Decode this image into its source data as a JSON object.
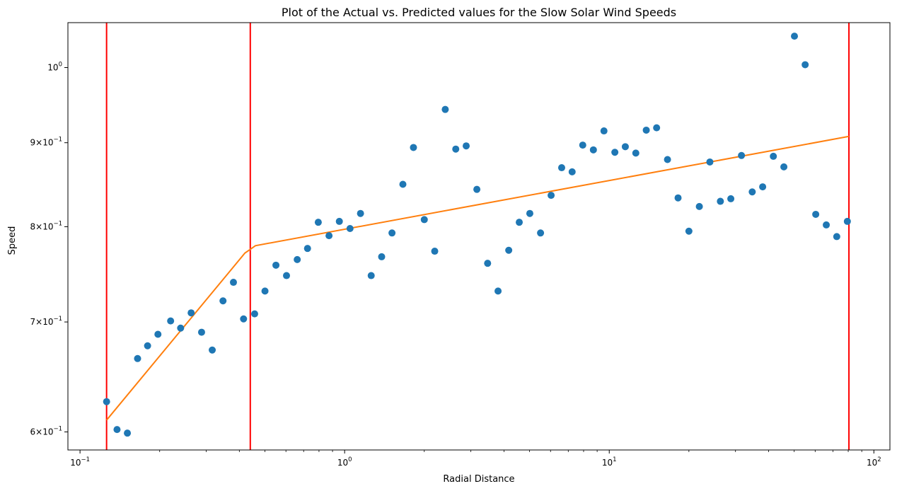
{
  "chart_data": {
    "type": "scatter",
    "title": "Plot of the Actual vs. Predicted values for the Slow Solar Wind Speeds",
    "xlabel": "Radial Distance",
    "ylabel": "Speed",
    "xscale": "log",
    "yscale": "log",
    "xlim": [
      0.09,
      115
    ],
    "ylim": [
      0.585,
      1.065
    ],
    "grid": false,
    "legend": "none",
    "xticks": [
      {
        "value": 0.1,
        "base": "10",
        "exp": "−1"
      },
      {
        "value": 1,
        "base": "10",
        "exp": "0"
      },
      {
        "value": 10,
        "base": "10",
        "exp": "1"
      },
      {
        "value": 100,
        "base": "10",
        "exp": "2"
      }
    ],
    "yticks": [
      {
        "value": 0.6,
        "mant": "6",
        "base": "10",
        "exp": "−1"
      },
      {
        "value": 0.7,
        "mant": "7",
        "base": "10",
        "exp": "−1"
      },
      {
        "value": 0.8,
        "mant": "8",
        "base": "10",
        "exp": "−1"
      },
      {
        "value": 0.9,
        "mant": "9",
        "base": "10",
        "exp": "−1"
      },
      {
        "value": 1.0,
        "mant": "",
        "base": "10",
        "exp": "0"
      }
    ],
    "colors": {
      "actual": "#1f77b4",
      "predicted": "#ff7f0e",
      "vlines": "#ff0000"
    },
    "vlines": [
      0.126,
      0.44,
      80.5
    ],
    "series": [
      {
        "kind": "scatter",
        "points": [
          [
            0.126,
            0.626
          ],
          [
            0.138,
            0.602
          ],
          [
            0.151,
            0.599
          ],
          [
            0.165,
            0.665
          ],
          [
            0.18,
            0.677
          ],
          [
            0.197,
            0.688
          ],
          [
            0.22,
            0.701
          ],
          [
            0.24,
            0.694
          ],
          [
            0.263,
            0.709
          ],
          [
            0.288,
            0.69
          ],
          [
            0.316,
            0.673
          ],
          [
            0.347,
            0.721
          ],
          [
            0.38,
            0.74
          ],
          [
            0.415,
            0.703
          ],
          [
            0.457,
            0.708
          ],
          [
            0.5,
            0.731
          ],
          [
            0.55,
            0.758
          ],
          [
            0.603,
            0.747
          ],
          [
            0.662,
            0.764
          ],
          [
            0.724,
            0.776
          ],
          [
            0.795,
            0.805
          ],
          [
            0.873,
            0.79
          ],
          [
            0.955,
            0.806
          ],
          [
            1.048,
            0.798
          ],
          [
            1.148,
            0.815
          ],
          [
            1.26,
            0.747
          ],
          [
            1.38,
            0.767
          ],
          [
            1.51,
            0.793
          ],
          [
            1.66,
            0.849
          ],
          [
            1.82,
            0.894
          ],
          [
            2.0,
            0.808
          ],
          [
            2.19,
            0.773
          ],
          [
            2.4,
            0.943
          ],
          [
            2.63,
            0.892
          ],
          [
            2.88,
            0.896
          ],
          [
            3.16,
            0.843
          ],
          [
            3.47,
            0.76
          ],
          [
            3.8,
            0.731
          ],
          [
            4.17,
            0.774
          ],
          [
            4.57,
            0.805
          ],
          [
            5.01,
            0.815
          ],
          [
            5.5,
            0.793
          ],
          [
            6.03,
            0.836
          ],
          [
            6.61,
            0.869
          ],
          [
            7.24,
            0.864
          ],
          [
            7.94,
            0.897
          ],
          [
            8.71,
            0.891
          ],
          [
            9.55,
            0.915
          ],
          [
            10.5,
            0.888
          ],
          [
            11.5,
            0.895
          ],
          [
            12.6,
            0.887
          ],
          [
            13.8,
            0.916
          ],
          [
            15.1,
            0.919
          ],
          [
            16.6,
            0.879
          ],
          [
            18.2,
            0.833
          ],
          [
            20.0,
            0.795
          ],
          [
            21.9,
            0.823
          ],
          [
            24.0,
            0.876
          ],
          [
            26.3,
            0.829
          ],
          [
            28.8,
            0.832
          ],
          [
            31.6,
            0.884
          ],
          [
            34.7,
            0.84
          ],
          [
            38.0,
            0.846
          ],
          [
            41.7,
            0.883
          ],
          [
            45.7,
            0.87
          ],
          [
            50.1,
            1.045
          ],
          [
            55.0,
            1.004
          ],
          [
            60.3,
            0.814
          ],
          [
            66.1,
            0.802
          ],
          [
            72.4,
            0.789
          ],
          [
            79.4,
            0.806
          ]
        ]
      },
      {
        "kind": "line",
        "points": [
          [
            0.126,
            0.61
          ],
          [
            0.42,
            0.771
          ],
          [
            0.44,
            0.775
          ],
          [
            0.46,
            0.779
          ],
          [
            80.5,
            0.908
          ]
        ]
      }
    ]
  }
}
